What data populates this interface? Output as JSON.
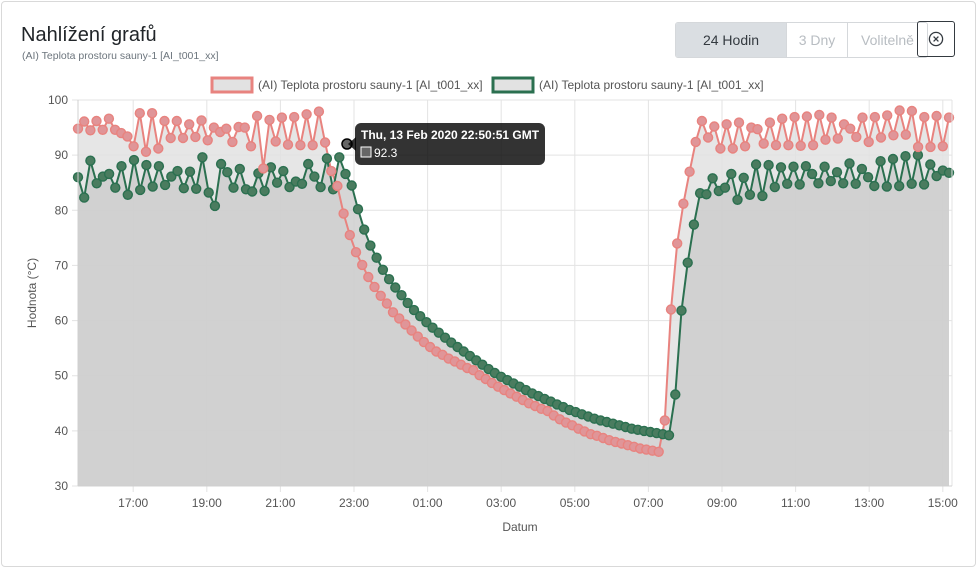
{
  "header": {
    "title": "Nahlížení grafů",
    "subtitle": "(AI) Teplota prostoru sauny-1 [AI_t001_xx]"
  },
  "range_buttons": [
    {
      "label": "24 Hodin",
      "active": true
    },
    {
      "label": "3 Dny",
      "active": false
    },
    {
      "label": "Volitelně",
      "active": false
    }
  ],
  "close_icon": "close-circle-icon",
  "tooltip": {
    "title": "Thu, 13 Feb 2020 22:50:51 GMT",
    "value": "92.3"
  },
  "colors": {
    "series1_line": "#e8837f",
    "series1_point": "#e09598",
    "series1_fill": "#e2e2e2",
    "series2_line": "#2b7050",
    "series2_point": "#4a7c5f",
    "series2_fill": "#cccccc"
  },
  "chart_data": {
    "type": "line",
    "xlabel": "Datum",
    "ylabel": "Hodnota (°C)",
    "ylim": [
      30,
      100
    ],
    "yticks": [
      30,
      40,
      50,
      60,
      70,
      80,
      90,
      100
    ],
    "x_start": "15:30",
    "x_end": "15:15",
    "xticks": [
      "17:00",
      "19:00",
      "21:00",
      "23:00",
      "01:00",
      "03:00",
      "05:00",
      "07:00",
      "09:00",
      "11:00",
      "13:00",
      "15:00"
    ],
    "grid": true,
    "legend": "top-center",
    "series": [
      {
        "name": "(AI) Teplota prostoru sauny-1 [AI_t001_xx]",
        "values": [
          94.8,
          96.1,
          94.5,
          96.2,
          94.6,
          96.6,
          94.6,
          94,
          93.4,
          91.6,
          97.6,
          90.6,
          97.6,
          91.2,
          96.2,
          93.1,
          96.2,
          93.1,
          95.6,
          93.3,
          96.3,
          92.7,
          95,
          94.2,
          94.8,
          92.4,
          95.1,
          95,
          91.6,
          97.1,
          87.6,
          96.4,
          92.5,
          96.8,
          91.9,
          96.9,
          91.8,
          97.4,
          91.8,
          97.9,
          92.3,
          87.1,
          84.4,
          79.4,
          75.5,
          72.4,
          70.1,
          67.9,
          66.1,
          64.5,
          63.1,
          61.5,
          60.4,
          59.3,
          58.2,
          57.1,
          56.1,
          55.2,
          54.4,
          53.8,
          53.1,
          52.6,
          52,
          51.4,
          51,
          50.1,
          49.4,
          48.7,
          48,
          47.4,
          46.8,
          46.2,
          45.6,
          45,
          44.5,
          44,
          43.6,
          42.8,
          42.1,
          41.5,
          41,
          40.4,
          39.9,
          39.4,
          39.1,
          38.7,
          38.3,
          38,
          37.7,
          37.4,
          37.1,
          36.8,
          36.6,
          36.4,
          36.2,
          41.9,
          62,
          74,
          81.2,
          87,
          92.4,
          96.2,
          93.2,
          95.2,
          91.2,
          95.6,
          91.2,
          95.9,
          91.6,
          95,
          94.7,
          92.1,
          95.9,
          91.8,
          96.6,
          91.8,
          96.9,
          91.7,
          97,
          91.8,
          97.3,
          92.8,
          96.8,
          93,
          95.6,
          94.8,
          93.3,
          96.8,
          92.4,
          96.9,
          93.2,
          97.2,
          93.6,
          98.1,
          93.7,
          98,
          91.5,
          96.9,
          91.5,
          97.1,
          91.6,
          96.8
        ]
      },
      {
        "name": "(AI) Teplota prostoru sauny-1 [AI_t001_xx]",
        "values": [
          86,
          82.3,
          89,
          84.9,
          86.1,
          86.6,
          84.1,
          88,
          82.8,
          89.1,
          83.7,
          88.2,
          84.3,
          88,
          84.6,
          86.1,
          87.1,
          84,
          87,
          83.9,
          89.6,
          83.2,
          80.8,
          88.4,
          86.9,
          84.1,
          87.5,
          83.8,
          83.4,
          86.7,
          83.5,
          87.8,
          85,
          87.1,
          84.2,
          85.2,
          84.8,
          88.4,
          86.1,
          84.2,
          89.4,
          83.8,
          89.6,
          86.6,
          84.5,
          80.2,
          76.5,
          73.6,
          71.4,
          69.2,
          67.5,
          66,
          64.6,
          63.2,
          61.9,
          60.8,
          59.7,
          58.7,
          57.8,
          56.9,
          56,
          55.2,
          54.4,
          53.6,
          52.8,
          52,
          51.2,
          50.5,
          49.8,
          49.2,
          48.6,
          48,
          47.4,
          46.8,
          46.3,
          45.8,
          45.3,
          44.8,
          44.3,
          43.8,
          43.4,
          43,
          42.6,
          42.2,
          41.9,
          41.6,
          41.3,
          41,
          40.7,
          40.4,
          40.2,
          40,
          39.8,
          39.6,
          39.4,
          39.2,
          46.6,
          61.8,
          70.5,
          77.4,
          83.1,
          82.9,
          85.8,
          83.5,
          84.1,
          86.6,
          81.9,
          85.9,
          82.8,
          88.3,
          82.6,
          88.2,
          84.2,
          87.8,
          84.8,
          87.9,
          84.7,
          88,
          86.6,
          84.9,
          87.9,
          85.3,
          86.9,
          84.9,
          88.5,
          84.8,
          87.5,
          86,
          84.4,
          88.9,
          84.3,
          89.3,
          84.4,
          89.8,
          84.8,
          90,
          84.7,
          88.3,
          86.2,
          87.2,
          86.8
        ]
      }
    ]
  }
}
